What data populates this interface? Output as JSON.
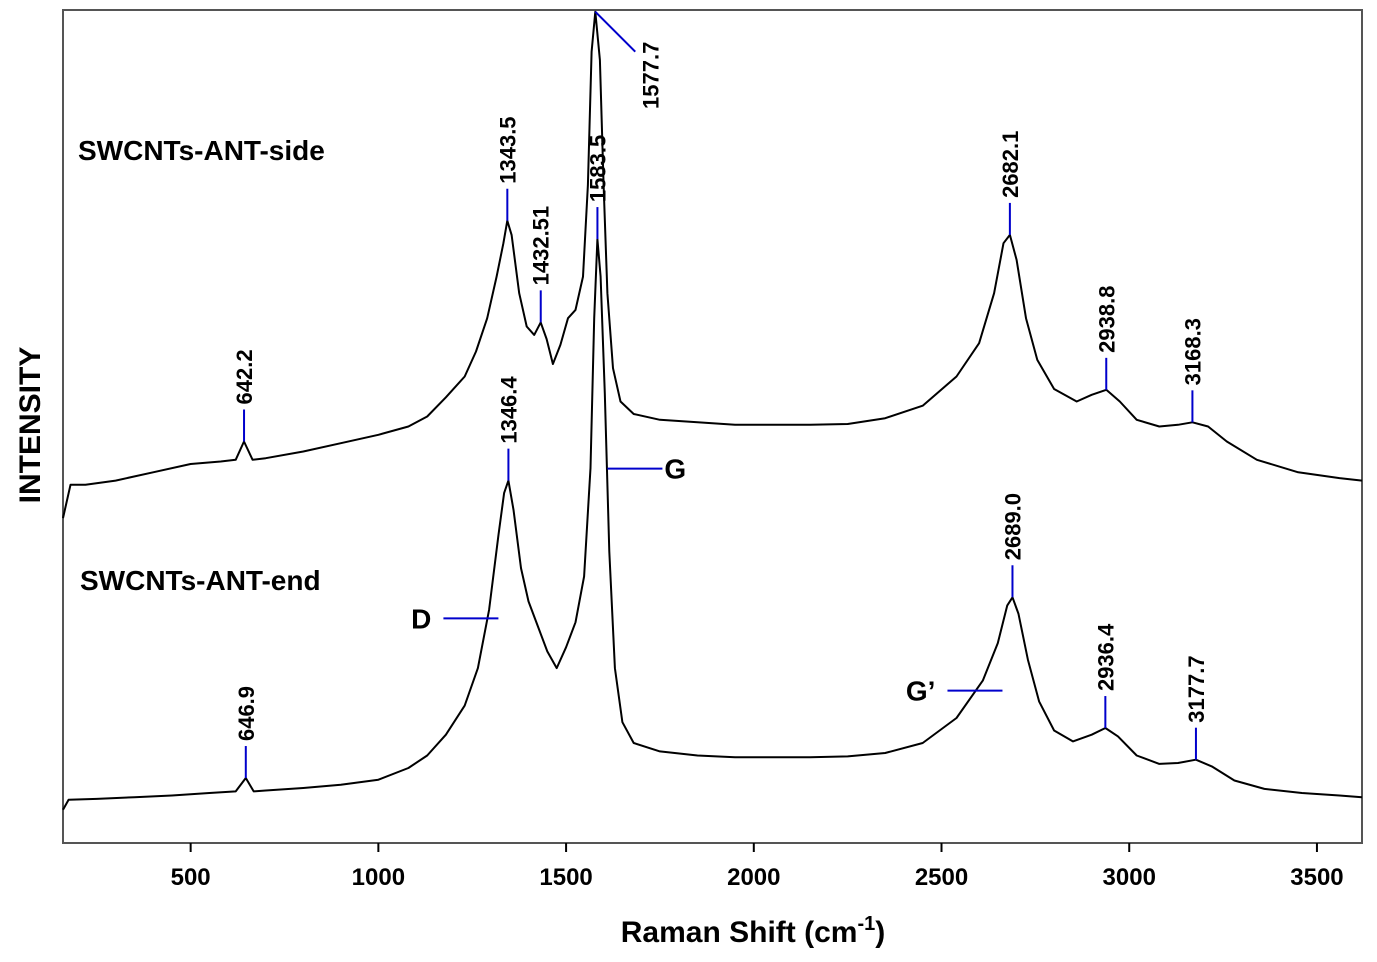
{
  "chart_data": {
    "type": "line",
    "title": "",
    "xlabel": "Raman Shift (cm",
    "xlabel_superscript": "-1",
    "xlabel_suffix": ")",
    "ylabel": "INTENSITY",
    "xlim": [
      160,
      3620
    ],
    "ylim": [
      0,
      10
    ],
    "x_ticks": [
      500,
      1000,
      1500,
      2000,
      2500,
      3000,
      3500
    ],
    "x_tick_labels": [
      "500",
      "1000",
      "1500",
      "2000",
      "2500",
      "3000",
      "3500"
    ],
    "grid": false,
    "colors": {
      "line": "#000000",
      "marker": "#0000cc"
    },
    "series": [
      {
        "name": "SWCNTs-ANT-side",
        "points": [
          [
            160,
            3.9
          ],
          [
            180,
            4.3
          ],
          [
            220,
            4.3
          ],
          [
            300,
            4.35
          ],
          [
            400,
            4.45
          ],
          [
            500,
            4.55
          ],
          [
            580,
            4.58
          ],
          [
            620,
            4.6
          ],
          [
            642.2,
            4.82
          ],
          [
            665,
            4.6
          ],
          [
            700,
            4.62
          ],
          [
            800,
            4.7
          ],
          [
            900,
            4.8
          ],
          [
            1000,
            4.9
          ],
          [
            1080,
            5.0
          ],
          [
            1130,
            5.12
          ],
          [
            1180,
            5.35
          ],
          [
            1230,
            5.6
          ],
          [
            1260,
            5.9
          ],
          [
            1290,
            6.3
          ],
          [
            1315,
            6.8
          ],
          [
            1333,
            7.2
          ],
          [
            1343.5,
            7.47
          ],
          [
            1355,
            7.3
          ],
          [
            1375,
            6.6
          ],
          [
            1395,
            6.2
          ],
          [
            1415,
            6.1
          ],
          [
            1432.51,
            6.25
          ],
          [
            1448,
            6.05
          ],
          [
            1465,
            5.75
          ],
          [
            1485,
            5.98
          ],
          [
            1505,
            6.3
          ],
          [
            1525,
            6.4
          ],
          [
            1545,
            6.8
          ],
          [
            1558,
            7.9
          ],
          [
            1568,
            9.5
          ],
          [
            1577.7,
            9.98
          ],
          [
            1590,
            9.4
          ],
          [
            1600,
            7.9
          ],
          [
            1610,
            6.6
          ],
          [
            1625,
            5.7
          ],
          [
            1645,
            5.3
          ],
          [
            1680,
            5.15
          ],
          [
            1750,
            5.08
          ],
          [
            1850,
            5.05
          ],
          [
            1950,
            5.02
          ],
          [
            2050,
            5.02
          ],
          [
            2150,
            5.02
          ],
          [
            2250,
            5.03
          ],
          [
            2350,
            5.1
          ],
          [
            2450,
            5.25
          ],
          [
            2540,
            5.6
          ],
          [
            2600,
            6.0
          ],
          [
            2640,
            6.6
          ],
          [
            2665,
            7.2
          ],
          [
            2682.1,
            7.3
          ],
          [
            2700,
            7.0
          ],
          [
            2725,
            6.3
          ],
          [
            2755,
            5.8
          ],
          [
            2800,
            5.45
          ],
          [
            2860,
            5.3
          ],
          [
            2900,
            5.38
          ],
          [
            2938.8,
            5.44
          ],
          [
            2975,
            5.3
          ],
          [
            3020,
            5.08
          ],
          [
            3080,
            5.0
          ],
          [
            3130,
            5.02
          ],
          [
            3168.3,
            5.05
          ],
          [
            3210,
            5.0
          ],
          [
            3260,
            4.82
          ],
          [
            3340,
            4.6
          ],
          [
            3450,
            4.45
          ],
          [
            3560,
            4.38
          ],
          [
            3620,
            4.35
          ]
        ]
      },
      {
        "name": "SWCNTs-ANT-end",
        "points": [
          [
            160,
            0.4
          ],
          [
            175,
            0.52
          ],
          [
            250,
            0.53
          ],
          [
            350,
            0.55
          ],
          [
            450,
            0.57
          ],
          [
            550,
            0.6
          ],
          [
            620,
            0.62
          ],
          [
            646.9,
            0.78
          ],
          [
            668,
            0.62
          ],
          [
            700,
            0.63
          ],
          [
            800,
            0.66
          ],
          [
            900,
            0.7
          ],
          [
            1000,
            0.76
          ],
          [
            1080,
            0.9
          ],
          [
            1130,
            1.05
          ],
          [
            1180,
            1.3
          ],
          [
            1230,
            1.65
          ],
          [
            1265,
            2.1
          ],
          [
            1295,
            2.8
          ],
          [
            1320,
            3.7
          ],
          [
            1335,
            4.2
          ],
          [
            1346.4,
            4.35
          ],
          [
            1360,
            4.0
          ],
          [
            1380,
            3.3
          ],
          [
            1400,
            2.9
          ],
          [
            1425,
            2.6
          ],
          [
            1450,
            2.3
          ],
          [
            1475,
            2.1
          ],
          [
            1500,
            2.35
          ],
          [
            1525,
            2.65
          ],
          [
            1548,
            3.2
          ],
          [
            1565,
            4.5
          ],
          [
            1575,
            6.3
          ],
          [
            1583.5,
            7.25
          ],
          [
            1592,
            6.8
          ],
          [
            1603,
            5.4
          ],
          [
            1615,
            3.5
          ],
          [
            1630,
            2.1
          ],
          [
            1650,
            1.45
          ],
          [
            1680,
            1.2
          ],
          [
            1750,
            1.1
          ],
          [
            1850,
            1.05
          ],
          [
            1950,
            1.03
          ],
          [
            2050,
            1.03
          ],
          [
            2150,
            1.03
          ],
          [
            2250,
            1.04
          ],
          [
            2350,
            1.08
          ],
          [
            2450,
            1.2
          ],
          [
            2540,
            1.5
          ],
          [
            2610,
            1.95
          ],
          [
            2650,
            2.4
          ],
          [
            2675,
            2.85
          ],
          [
            2689.0,
            2.95
          ],
          [
            2705,
            2.75
          ],
          [
            2730,
            2.2
          ],
          [
            2760,
            1.7
          ],
          [
            2800,
            1.35
          ],
          [
            2850,
            1.22
          ],
          [
            2900,
            1.3
          ],
          [
            2936.4,
            1.38
          ],
          [
            2970,
            1.28
          ],
          [
            3020,
            1.05
          ],
          [
            3080,
            0.95
          ],
          [
            3130,
            0.96
          ],
          [
            3177.7,
            1.0
          ],
          [
            3220,
            0.92
          ],
          [
            3280,
            0.75
          ],
          [
            3360,
            0.65
          ],
          [
            3460,
            0.6
          ],
          [
            3560,
            0.57
          ],
          [
            3620,
            0.55
          ]
        ]
      }
    ],
    "peak_labels": [
      {
        "series": 0,
        "x": 642.2,
        "text": "642.2"
      },
      {
        "series": 0,
        "x": 1343.5,
        "text": "1343.5"
      },
      {
        "series": 0,
        "x": 1432.51,
        "text": "1432.51"
      },
      {
        "series": 0,
        "x": 1577.7,
        "text": "1577.7",
        "style": "diagonal"
      },
      {
        "series": 0,
        "x": 2682.1,
        "text": "2682.1"
      },
      {
        "series": 0,
        "x": 2938.8,
        "text": "2938.8"
      },
      {
        "series": 0,
        "x": 3168.3,
        "text": "3168.3"
      },
      {
        "series": 1,
        "x": 646.9,
        "text": "646.9"
      },
      {
        "series": 1,
        "x": 1346.4,
        "text": "1346.4"
      },
      {
        "series": 1,
        "x": 1583.5,
        "text": "1583.5"
      },
      {
        "series": 1,
        "x": 2689.0,
        "text": "2689.0"
      },
      {
        "series": 1,
        "x": 2936.4,
        "text": "2936.4"
      },
      {
        "series": 1,
        "x": 3177.7,
        "text": "3177.7"
      }
    ],
    "band_labels": [
      {
        "text": "D",
        "x": 1346.4,
        "side": "left"
      },
      {
        "text": "G",
        "x": 1583.5,
        "side": "right"
      },
      {
        "text": "G’",
        "x": 2689.0,
        "side": "left"
      }
    ]
  }
}
